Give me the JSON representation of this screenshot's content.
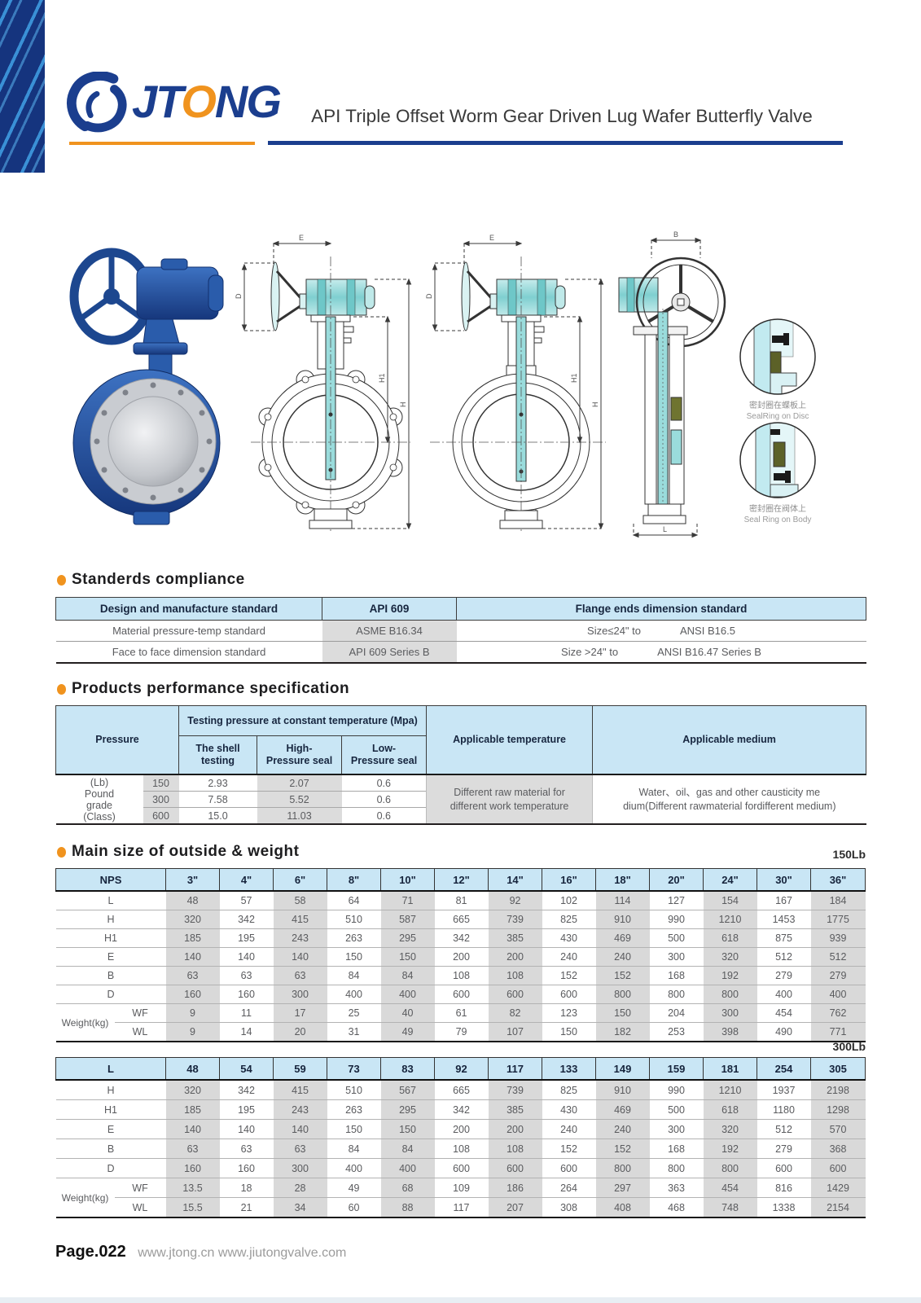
{
  "header": {
    "brand": "JTONG",
    "brand_parts": [
      "JT",
      "O",
      "NG"
    ],
    "title": "API Triple Offset Worm Gear Driven Lug Wafer Butterfly Valve"
  },
  "colors": {
    "navy": "#1b3e8e",
    "orange": "#f0931e",
    "table_header_blue": "#c9e6f5",
    "stripe_gray": "#d9d9d9",
    "drawing_teal": "#9adcdc"
  },
  "drawings": {
    "dim_labels": {
      "e": "E",
      "d": "D",
      "h1": "H1",
      "h": "H",
      "b": "B",
      "l": "L"
    },
    "details": [
      {
        "caption_cn": "密封圈在蝶板上",
        "caption_en": "SealRing on Disc"
      },
      {
        "caption_cn": "密封圈在阀体上",
        "caption_en": "Seal Ring on Body"
      }
    ]
  },
  "standards": {
    "heading": "Standerds compliance",
    "header": [
      "Design and manufacture standard",
      "API 609",
      "Flange ends dimension standard"
    ],
    "rows": [
      [
        "Material pressure-temp standard",
        "ASME B16.34",
        "Size≤24\" to",
        "ANSI B16.5"
      ],
      [
        "Face to face dimension standard",
        "API 609 Series B",
        "Size >24\" to",
        "ANSI B16.47 Series B"
      ]
    ]
  },
  "performance": {
    "heading": "Products performance specification",
    "pressure_label": "Pressure",
    "testing_group_label": "Testing pressure at constant temperature (Mpa)",
    "sub_headers": [
      "The shell testing",
      "High-\nPressure seal",
      "Low-\nPressure seal"
    ],
    "temp_label": "Applicable temperature",
    "medium_label": "Applicable medium",
    "grade_label": "(Lb)\nPound\ngrade\n(Class)",
    "rows": [
      {
        "class": "150",
        "shell": "2.93",
        "high": "2.07",
        "low": "0.6"
      },
      {
        "class": "300",
        "shell": "7.58",
        "high": "5.52",
        "low": "0.6"
      },
      {
        "class": "600",
        "shell": "15.0",
        "high": "11.03",
        "low": "0.6"
      }
    ],
    "temp_text": "Different raw material for\ndifferent work temperature",
    "medium_text": "Water、oil、gas and other causticity me\ndium(Different rawmaterial fordifferent medium)"
  },
  "main_size": {
    "heading": "Main size of outside & weight",
    "weight_label": "Weight(kg)",
    "tables": [
      {
        "class_label": "150Lb",
        "header_label": "NPS",
        "columns": [
          "3\"",
          "4\"",
          "6\"",
          "8\"",
          "10\"",
          "12\"",
          "14\"",
          "16\"",
          "18\"",
          "20\"",
          "24\"",
          "30\"",
          "36\""
        ],
        "rows": [
          {
            "label": "L",
            "values": [
              48,
              57,
              58,
              64,
              71,
              81,
              92,
              102,
              114,
              127,
              154,
              167,
              184
            ]
          },
          {
            "label": "H",
            "values": [
              320,
              342,
              415,
              510,
              587,
              665,
              739,
              825,
              910,
              990,
              1210,
              1453,
              1775
            ]
          },
          {
            "label": "H1",
            "values": [
              185,
              195,
              243,
              263,
              295,
              342,
              385,
              430,
              469,
              500,
              618,
              875,
              939
            ]
          },
          {
            "label": "E",
            "values": [
              140,
              140,
              140,
              150,
              150,
              200,
              200,
              240,
              240,
              300,
              320,
              512,
              512
            ]
          },
          {
            "label": "B",
            "values": [
              63,
              63,
              63,
              84,
              84,
              108,
              108,
              152,
              152,
              168,
              192,
              279,
              279
            ]
          },
          {
            "label": "D",
            "values": [
              160,
              160,
              300,
              400,
              400,
              600,
              600,
              600,
              800,
              800,
              800,
              400,
              400
            ]
          },
          {
            "label": "WF",
            "weight": true,
            "values": [
              9,
              11,
              17,
              25,
              40,
              61,
              82,
              123,
              150,
              204,
              300,
              454,
              762
            ]
          },
          {
            "label": "WL",
            "weight": true,
            "values": [
              9,
              14,
              20,
              31,
              49,
              79,
              107,
              150,
              182,
              253,
              398,
              490,
              771
            ]
          }
        ]
      },
      {
        "class_label": "300Lb",
        "header_label": "L",
        "columns": [
          48,
          54,
          59,
          73,
          83,
          92,
          117,
          133,
          149,
          159,
          181,
          254,
          305
        ],
        "rows": [
          {
            "label": "H",
            "values": [
              320,
              342,
              415,
              510,
              567,
              665,
              739,
              825,
              910,
              990,
              1210,
              1937,
              2198
            ]
          },
          {
            "label": "H1",
            "values": [
              185,
              195,
              243,
              263,
              295,
              342,
              385,
              430,
              469,
              500,
              618,
              1180,
              1298
            ]
          },
          {
            "label": "E",
            "values": [
              140,
              140,
              140,
              150,
              150,
              200,
              200,
              240,
              240,
              300,
              320,
              512,
              570
            ]
          },
          {
            "label": "B",
            "values": [
              63,
              63,
              63,
              84,
              84,
              108,
              108,
              152,
              152,
              168,
              192,
              279,
              368
            ]
          },
          {
            "label": "D",
            "values": [
              160,
              160,
              300,
              400,
              400,
              600,
              600,
              600,
              800,
              800,
              800,
              600,
              600
            ]
          },
          {
            "label": "WF",
            "weight": true,
            "values": [
              13.5,
              18,
              28,
              49,
              68,
              109,
              186,
              264,
              297,
              363,
              454,
              816,
              1429
            ]
          },
          {
            "label": "WL",
            "weight": true,
            "values": [
              15.5,
              21,
              34,
              60,
              88,
              117,
              207,
              308,
              408,
              468,
              748,
              1338,
              2154
            ]
          }
        ]
      }
    ]
  },
  "footer": {
    "page_label": "Page.022",
    "urls": "www.jtong.cn www.jiutongvalve.com"
  }
}
